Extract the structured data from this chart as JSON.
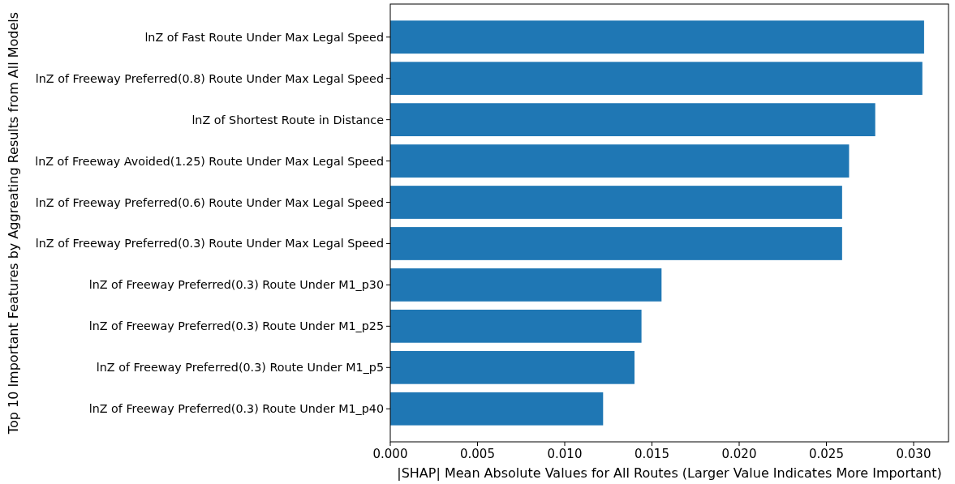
{
  "chart_data": {
    "type": "bar",
    "orientation": "horizontal",
    "xlabel": "|SHAP| Mean Absolute Values for All Routes (Larger Value Indicates More Important)",
    "ylabel": "Top 10 Important Features by Aggreating Results from All Models",
    "categories": [
      "lnZ of Fast Route Under Max Legal Speed",
      "lnZ of Freeway Preferred(0.8) Route Under Max Legal Speed",
      "lnZ of Shortest Route in Distance",
      "lnZ of Freeway Avoided(1.25) Route Under Max Legal Speed",
      "lnZ of Freeway Preferred(0.6) Route Under Max Legal Speed",
      "lnZ of Freeway Preferred(0.3) Route Under Max Legal Speed",
      "lnZ of Freeway Preferred(0.3) Route Under M1_p30",
      "lnZ of Freeway Preferred(0.3) Route Under M1_p25",
      "lnZ of Freeway Preferred(0.3) Route Under M1_p5",
      "lnZ of Freeway Preferred(0.3) Route Under M1_p40"
    ],
    "values": [
      0.0306,
      0.0305,
      0.0278,
      0.0263,
      0.0259,
      0.0259,
      0.01555,
      0.0144,
      0.014,
      0.0122
    ],
    "color": "#1f77b4",
    "xlim": [
      0,
      0.032
    ],
    "xticks": [
      {
        "value": 0,
        "label": "0.000"
      },
      {
        "value": 0.005,
        "label": "0.005"
      },
      {
        "value": 0.01,
        "label": "0.010"
      },
      {
        "value": 0.015,
        "label": "0.015"
      },
      {
        "value": 0.02,
        "label": "0.020"
      },
      {
        "value": 0.025,
        "label": "0.025"
      },
      {
        "value": 0.03,
        "label": "0.030"
      }
    ]
  }
}
